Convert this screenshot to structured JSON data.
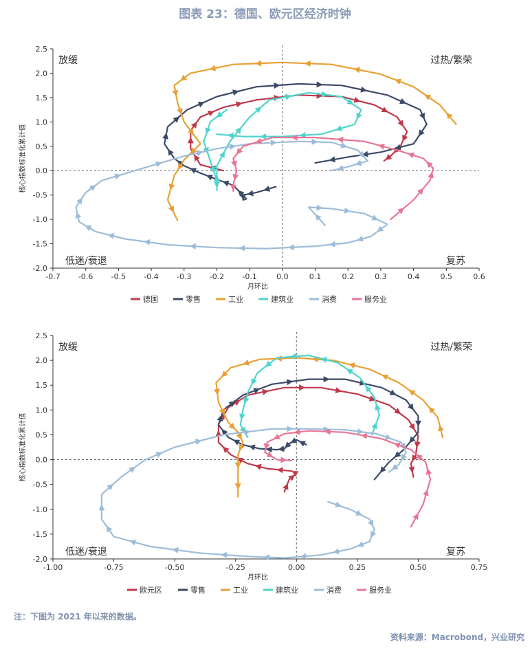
{
  "title": "图表 23：德国、欧元区经济时钟",
  "note": "注：下图为 2021 年以来的数据。",
  "source": "资料来源：Macrobond，兴业研究",
  "colors": {
    "red": "#c0394b",
    "navy": "#3b4a66",
    "orange": "#e8a033",
    "teal": "#4fd3cc",
    "lightblue": "#9dbcd8",
    "pink": "#e87595"
  },
  "chart_data": [
    {
      "type": "line",
      "xlabel": "月环比",
      "ylabel": "核心指数标准化累计值",
      "xlim": [
        -0.7,
        0.6
      ],
      "ylim": [
        -2.0,
        2.5
      ],
      "xticks": [
        "-0.7",
        "-0.6",
        "-0.5",
        "-0.4",
        "-0.3",
        "-0.2",
        "-0.1",
        "0.0",
        "0.1",
        "0.2",
        "0.3",
        "0.4",
        "0.5",
        "0.6"
      ],
      "xtick_values": [
        -0.7,
        -0.6,
        -0.5,
        -0.4,
        -0.3,
        -0.2,
        -0.1,
        0.0,
        0.1,
        0.2,
        0.3,
        0.4,
        0.5,
        0.6
      ],
      "yticks": [
        "2.5",
        "2.0",
        "1.5",
        "1.0",
        "0.5",
        "0.0",
        "-0.5",
        "-1.0",
        "-1.5",
        "-2.0"
      ],
      "ytick_values": [
        2.5,
        2.0,
        1.5,
        1.0,
        0.5,
        0.0,
        -0.5,
        -1.0,
        -1.5,
        -2.0
      ],
      "quadrants": {
        "top_left": "放缓",
        "top_right": "过热/繁荣",
        "bottom_left": "低迷/衰退",
        "bottom_right": "复苏"
      },
      "grid": false,
      "legend_position": "bottom",
      "series": [
        {
          "name": "德国",
          "color": "red",
          "points": [
            [
              -0.18,
              0.0
            ],
            [
              -0.25,
              0.12
            ],
            [
              -0.28,
              0.45
            ],
            [
              -0.28,
              0.82
            ],
            [
              -0.25,
              1.1
            ],
            [
              -0.18,
              1.3
            ],
            [
              -0.08,
              1.45
            ],
            [
              0.05,
              1.55
            ],
            [
              0.18,
              1.52
            ],
            [
              0.28,
              1.35
            ],
            [
              0.35,
              1.1
            ],
            [
              0.38,
              0.8
            ],
            [
              0.36,
              0.5
            ],
            [
              0.33,
              0.3
            ],
            [
              0.31,
              0.2
            ]
          ]
        },
        {
          "name": "零售",
          "color": "navy",
          "points": [
            [
              -0.02,
              -0.33
            ],
            [
              -0.08,
              -0.45
            ],
            [
              -0.12,
              -0.5
            ],
            [
              -0.12,
              -0.6
            ],
            [
              -0.11,
              -0.58
            ],
            [
              -0.15,
              -0.3
            ],
            [
              -0.2,
              -0.18
            ],
            [
              -0.25,
              -0.05
            ],
            [
              -0.3,
              0.1
            ],
            [
              -0.33,
              0.25
            ],
            [
              -0.36,
              0.55
            ],
            [
              -0.35,
              0.9
            ],
            [
              -0.29,
              1.25
            ],
            [
              -0.2,
              1.52
            ],
            [
              -0.08,
              1.72
            ],
            [
              0.05,
              1.78
            ],
            [
              0.18,
              1.75
            ],
            [
              0.32,
              1.55
            ],
            [
              0.42,
              1.25
            ],
            [
              0.44,
              0.95
            ],
            [
              0.4,
              0.55
            ],
            [
              0.3,
              0.38
            ],
            [
              0.2,
              0.28
            ],
            [
              0.1,
              0.16
            ]
          ]
        },
        {
          "name": "工业",
          "color": "orange",
          "points": [
            [
              0.53,
              0.95
            ],
            [
              0.48,
              1.35
            ],
            [
              0.4,
              1.72
            ],
            [
              0.3,
              1.98
            ],
            [
              0.15,
              2.18
            ],
            [
              0.0,
              2.22
            ],
            [
              -0.15,
              2.18
            ],
            [
              -0.28,
              2.0
            ],
            [
              -0.33,
              1.75
            ],
            [
              -0.32,
              1.4
            ],
            [
              -0.3,
              1.0
            ],
            [
              -0.25,
              0.55
            ],
            [
              -0.3,
              0.22
            ],
            [
              -0.33,
              -0.1
            ],
            [
              -0.35,
              -0.6
            ],
            [
              -0.32,
              -1.02
            ]
          ]
        },
        {
          "name": "建筑业",
          "color": "teal",
          "points": [
            [
              -0.17,
              1.25
            ],
            [
              -0.22,
              1.0
            ],
            [
              -0.24,
              0.6
            ],
            [
              -0.22,
              0.2
            ],
            [
              -0.2,
              -0.2
            ],
            [
              -0.2,
              -0.4
            ],
            [
              -0.2,
              0.1
            ],
            [
              -0.16,
              0.6
            ],
            [
              -0.1,
              1.1
            ],
            [
              -0.04,
              1.45
            ],
            [
              0.08,
              1.6
            ],
            [
              0.18,
              1.52
            ],
            [
              0.24,
              1.25
            ],
            [
              0.22,
              0.95
            ],
            [
              0.12,
              0.75
            ],
            [
              0.0,
              0.7
            ],
            [
              -0.12,
              0.7
            ],
            [
              -0.2,
              0.75
            ]
          ]
        },
        {
          "name": "消费",
          "color": "lightblue",
          "points": [
            [
              0.13,
              -1.12
            ],
            [
              0.08,
              -0.75
            ],
            [
              0.15,
              -0.78
            ],
            [
              0.25,
              -0.88
            ],
            [
              0.32,
              -1.1
            ],
            [
              0.27,
              -1.35
            ],
            [
              0.2,
              -1.48
            ],
            [
              0.1,
              -1.55
            ],
            [
              -0.05,
              -1.6
            ],
            [
              -0.2,
              -1.58
            ],
            [
              -0.35,
              -1.52
            ],
            [
              -0.48,
              -1.4
            ],
            [
              -0.57,
              -1.25
            ],
            [
              -0.62,
              -1.05
            ],
            [
              -0.63,
              -0.75
            ],
            [
              -0.6,
              -0.45
            ],
            [
              -0.55,
              -0.2
            ],
            [
              -0.45,
              0.0
            ],
            [
              -0.3,
              0.3
            ],
            [
              -0.2,
              0.45
            ],
            [
              -0.1,
              0.55
            ],
            [
              0.05,
              0.6
            ],
            [
              0.15,
              0.58
            ],
            [
              0.23,
              0.42
            ],
            [
              0.26,
              0.2
            ],
            [
              0.2,
              0.08
            ],
            [
              0.15,
              0.0
            ]
          ]
        },
        {
          "name": "服务业",
          "color": "pink",
          "points": [
            [
              0.33,
              -1.0
            ],
            [
              0.4,
              -0.6
            ],
            [
              0.45,
              -0.2
            ],
            [
              0.46,
              0.05
            ],
            [
              0.43,
              0.25
            ],
            [
              0.35,
              0.42
            ],
            [
              0.25,
              0.6
            ],
            [
              0.1,
              0.68
            ],
            [
              -0.03,
              0.68
            ],
            [
              -0.12,
              0.5
            ],
            [
              -0.15,
              0.25
            ],
            [
              -0.14,
              0.0
            ],
            [
              -0.15,
              -0.3
            ],
            [
              -0.15,
              -0.42
            ]
          ]
        }
      ]
    },
    {
      "type": "line",
      "xlabel": "月环比",
      "ylabel": "核心指数标准化累计值",
      "xlim": [
        -1.0,
        0.75
      ],
      "ylim": [
        -2.0,
        2.5
      ],
      "xticks": [
        "-1.00",
        "-0.75",
        "-0.50",
        "-0.25",
        "0.00",
        "0.25",
        "0.50",
        "0.75"
      ],
      "xtick_values": [
        -1.0,
        -0.75,
        -0.5,
        -0.25,
        0.0,
        0.25,
        0.5,
        0.75
      ],
      "yticks": [
        "2.5",
        "2.0",
        "1.5",
        "1.0",
        "0.5",
        "0.0",
        "-0.5",
        "-1.0",
        "-1.5",
        "-2.0"
      ],
      "ytick_values": [
        2.5,
        2.0,
        1.5,
        1.0,
        0.5,
        0.0,
        -0.5,
        -1.0,
        -1.5,
        -2.0
      ],
      "quadrants": {
        "top_left": "放缓",
        "top_right": "过热/繁荣",
        "bottom_left": "低迷/衰退",
        "bottom_right": "复苏"
      },
      "grid": false,
      "legend_position": "bottom",
      "series": [
        {
          "name": "欧元区",
          "color": "red",
          "points": [
            [
              -0.05,
              -0.65
            ],
            [
              -0.03,
              -0.4
            ],
            [
              0.0,
              -0.28
            ],
            [
              -0.02,
              -0.23
            ],
            [
              -0.12,
              -0.18
            ],
            [
              -0.2,
              -0.08
            ],
            [
              -0.27,
              0.1
            ],
            [
              -0.32,
              0.35
            ],
            [
              -0.32,
              0.72
            ],
            [
              -0.28,
              1.05
            ],
            [
              -0.2,
              1.3
            ],
            [
              -0.05,
              1.45
            ],
            [
              0.1,
              1.45
            ],
            [
              0.25,
              1.32
            ],
            [
              0.38,
              1.1
            ],
            [
              0.46,
              0.8
            ],
            [
              0.5,
              0.48
            ],
            [
              0.49,
              0.1
            ],
            [
              0.47,
              -0.08
            ],
            [
              0.48,
              -0.35
            ]
          ]
        },
        {
          "name": "零售",
          "color": "navy",
          "points": [
            [
              0.04,
              0.3
            ],
            [
              0.0,
              0.4
            ],
            [
              -0.03,
              0.32
            ],
            [
              -0.05,
              0.22
            ],
            [
              -0.08,
              0.2
            ],
            [
              -0.15,
              0.22
            ],
            [
              -0.22,
              0.3
            ],
            [
              -0.28,
              0.45
            ],
            [
              -0.32,
              0.7
            ],
            [
              -0.3,
              1.0
            ],
            [
              -0.22,
              1.3
            ],
            [
              -0.1,
              1.52
            ],
            [
              0.05,
              1.62
            ],
            [
              0.2,
              1.62
            ],
            [
              0.35,
              1.45
            ],
            [
              0.45,
              1.2
            ],
            [
              0.5,
              0.88
            ],
            [
              0.5,
              0.55
            ],
            [
              0.44,
              0.2
            ],
            [
              0.38,
              -0.05
            ],
            [
              0.32,
              -0.4
            ]
          ]
        },
        {
          "name": "工业",
          "color": "orange",
          "points": [
            [
              0.6,
              0.45
            ],
            [
              0.58,
              0.85
            ],
            [
              0.52,
              1.2
            ],
            [
              0.42,
              1.55
            ],
            [
              0.3,
              1.82
            ],
            [
              0.15,
              2.0
            ],
            [
              0.0,
              2.05
            ],
            [
              -0.15,
              2.02
            ],
            [
              -0.27,
              1.85
            ],
            [
              -0.33,
              1.55
            ],
            [
              -0.32,
              1.15
            ],
            [
              -0.28,
              0.75
            ],
            [
              -0.24,
              0.55
            ],
            [
              -0.22,
              0.35
            ],
            [
              -0.24,
              0.1
            ],
            [
              -0.24,
              -0.35
            ],
            [
              -0.24,
              -0.75
            ]
          ]
        },
        {
          "name": "建筑业",
          "color": "teal",
          "points": [
            [
              0.31,
              0.5
            ],
            [
              0.34,
              0.9
            ],
            [
              0.32,
              1.25
            ],
            [
              0.26,
              1.65
            ],
            [
              0.17,
              1.95
            ],
            [
              0.05,
              2.1
            ],
            [
              -0.08,
              2.05
            ],
            [
              -0.16,
              1.75
            ],
            [
              -0.2,
              1.35
            ],
            [
              -0.22,
              1.0
            ],
            [
              -0.23,
              0.7
            ],
            [
              -0.2,
              0.45
            ]
          ]
        },
        {
          "name": "消费",
          "color": "lightblue",
          "points": [
            [
              0.13,
              -0.85
            ],
            [
              0.22,
              -1.0
            ],
            [
              0.3,
              -1.2
            ],
            [
              0.32,
              -1.4
            ],
            [
              0.3,
              -1.65
            ],
            [
              0.22,
              -1.8
            ],
            [
              0.1,
              -1.92
            ],
            [
              -0.05,
              -1.98
            ],
            [
              -0.2,
              -1.95
            ],
            [
              -0.4,
              -1.88
            ],
            [
              -0.6,
              -1.75
            ],
            [
              -0.75,
              -1.55
            ],
            [
              -0.8,
              -1.2
            ],
            [
              -0.8,
              -0.7
            ],
            [
              -0.72,
              -0.35
            ],
            [
              -0.62,
              0.0
            ],
            [
              -0.5,
              0.25
            ],
            [
              -0.3,
              0.5
            ],
            [
              -0.1,
              0.62
            ],
            [
              0.05,
              0.62
            ],
            [
              0.2,
              0.6
            ],
            [
              0.33,
              0.52
            ],
            [
              0.43,
              0.35
            ],
            [
              0.45,
              0.15
            ],
            [
              0.42,
              -0.1
            ],
            [
              0.38,
              -0.25
            ]
          ]
        },
        {
          "name": "服务业",
          "color": "pink",
          "points": [
            [
              0.47,
              -1.35
            ],
            [
              0.52,
              -0.9
            ],
            [
              0.55,
              -0.4
            ],
            [
              0.53,
              -0.05
            ],
            [
              0.47,
              0.2
            ],
            [
              0.35,
              0.42
            ],
            [
              0.2,
              0.55
            ],
            [
              0.05,
              0.58
            ],
            [
              -0.05,
              0.52
            ],
            [
              -0.12,
              0.35
            ],
            [
              -0.13,
              0.15
            ],
            [
              -0.08,
              0.0
            ],
            [
              -0.02,
              -0.02
            ]
          ]
        }
      ]
    }
  ]
}
